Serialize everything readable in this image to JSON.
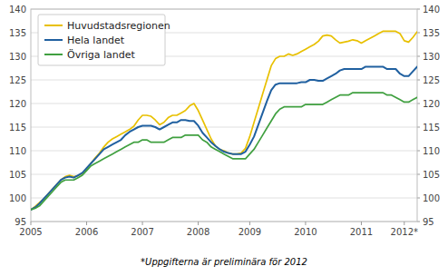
{
  "chart_data": {
    "type": "line",
    "annotations": [
      "*Uppgifterna är preliminära för 2012"
    ],
    "categories": [
      "2005",
      null,
      null,
      null,
      null,
      null,
      null,
      null,
      null,
      null,
      null,
      null,
      null,
      "2006",
      null,
      null,
      null,
      null,
      null,
      null,
      null,
      null,
      null,
      null,
      null,
      null,
      "2007",
      null,
      null,
      null,
      null,
      null,
      null,
      null,
      null,
      null,
      null,
      null,
      null,
      "2008",
      null,
      null,
      null,
      null,
      null,
      null,
      null,
      null,
      null,
      null,
      null,
      "2009",
      null,
      null,
      null,
      null,
      null,
      null,
      null,
      null,
      null,
      null,
      null,
      null,
      "2010",
      null,
      null,
      null,
      null,
      null,
      null,
      null,
      null,
      null,
      null,
      null,
      null,
      "2011",
      null,
      null,
      null,
      null,
      null,
      null,
      null,
      null,
      null,
      "2012*",
      null,
      null,
      null
    ],
    "series": [
      {
        "name": "Huvudstadsregionen",
        "color": "#e8c000",
        "values": [
          97.5,
          98.2,
          99.0,
          99.8,
          100.8,
          101.8,
          102.8,
          103.8,
          104.5,
          104.8,
          104.5,
          104.7,
          105.2,
          106.2,
          107.3,
          108.5,
          109.5,
          110.8,
          111.8,
          112.5,
          113.0,
          113.5,
          114.0,
          114.5,
          115.2,
          116.5,
          117.5,
          117.5,
          117.3,
          116.5,
          115.5,
          116.0,
          117.0,
          117.5,
          117.5,
          118.0,
          118.5,
          119.5,
          120.0,
          118.5,
          116.5,
          114.5,
          112.5,
          111.0,
          110.3,
          110.0,
          109.5,
          109.3,
          109.3,
          109.5,
          110.5,
          113.0,
          116.0,
          119.0,
          122.0,
          125.0,
          128.0,
          129.5,
          130.0,
          130.0,
          130.5,
          130.2,
          130.5,
          131.0,
          131.5,
          132.0,
          132.5,
          133.2,
          134.3,
          134.5,
          134.3,
          133.5,
          132.8,
          133.0,
          133.2,
          133.5,
          133.3,
          132.8,
          133.3,
          133.8,
          134.3,
          134.8,
          135.3,
          135.3,
          135.3,
          135.3,
          134.8,
          133.3,
          133.0,
          134.0,
          135.2
        ]
      },
      {
        "name": "Hela landet",
        "color": "#2060a0",
        "values": [
          97.5,
          98.0,
          98.8,
          99.8,
          100.8,
          101.8,
          102.8,
          103.8,
          104.3,
          104.5,
          104.3,
          104.8,
          105.3,
          106.3,
          107.3,
          108.3,
          109.3,
          110.3,
          110.8,
          111.3,
          111.8,
          112.3,
          113.3,
          114.0,
          114.5,
          115.0,
          115.3,
          115.3,
          115.3,
          115.0,
          114.5,
          115.0,
          115.5,
          116.0,
          116.0,
          116.5,
          116.5,
          116.3,
          116.3,
          115.3,
          113.8,
          112.8,
          111.8,
          111.0,
          110.3,
          109.8,
          109.5,
          109.3,
          109.3,
          109.3,
          109.8,
          111.3,
          113.0,
          115.5,
          118.0,
          120.5,
          122.8,
          124.0,
          124.3,
          124.3,
          124.3,
          124.3,
          124.3,
          124.5,
          124.5,
          125.0,
          125.0,
          124.8,
          124.8,
          125.3,
          125.8,
          126.3,
          127.0,
          127.3,
          127.3,
          127.3,
          127.3,
          127.3,
          127.8,
          127.8,
          127.8,
          127.8,
          127.8,
          127.3,
          127.3,
          127.3,
          126.3,
          125.8,
          125.8,
          126.8,
          127.8
        ]
      },
      {
        "name": "Övriga landet",
        "color": "#40a040",
        "values": [
          97.5,
          97.8,
          98.3,
          99.3,
          100.3,
          101.3,
          102.3,
          103.3,
          103.8,
          103.8,
          103.8,
          104.3,
          104.8,
          105.8,
          106.8,
          107.3,
          107.8,
          108.3,
          108.8,
          109.3,
          109.8,
          110.3,
          110.8,
          111.3,
          111.8,
          111.8,
          112.3,
          112.3,
          111.8,
          111.8,
          111.8,
          111.8,
          112.3,
          112.8,
          112.8,
          112.8,
          113.3,
          113.3,
          113.3,
          113.3,
          112.3,
          111.8,
          110.8,
          110.3,
          109.8,
          109.3,
          108.8,
          108.3,
          108.3,
          108.3,
          108.3,
          109.3,
          110.3,
          111.8,
          113.3,
          114.8,
          116.3,
          117.8,
          118.8,
          119.3,
          119.3,
          119.3,
          119.3,
          119.3,
          119.8,
          119.8,
          119.8,
          119.8,
          119.8,
          120.3,
          120.8,
          121.3,
          121.8,
          121.8,
          121.8,
          122.3,
          122.3,
          122.3,
          122.3,
          122.3,
          122.3,
          122.3,
          122.3,
          121.8,
          121.8,
          121.3,
          120.8,
          120.3,
          120.3,
          120.8,
          121.3
        ]
      }
    ],
    "ylim": [
      95,
      140
    ],
    "yticks": [
      95,
      100,
      105,
      110,
      115,
      120,
      125,
      130,
      135,
      140
    ],
    "y2lim": [
      95,
      140
    ],
    "y2ticks": [
      95,
      100,
      105,
      110,
      115,
      120,
      125,
      130,
      135,
      140
    ],
    "grid": true,
    "legend": "upper left"
  }
}
